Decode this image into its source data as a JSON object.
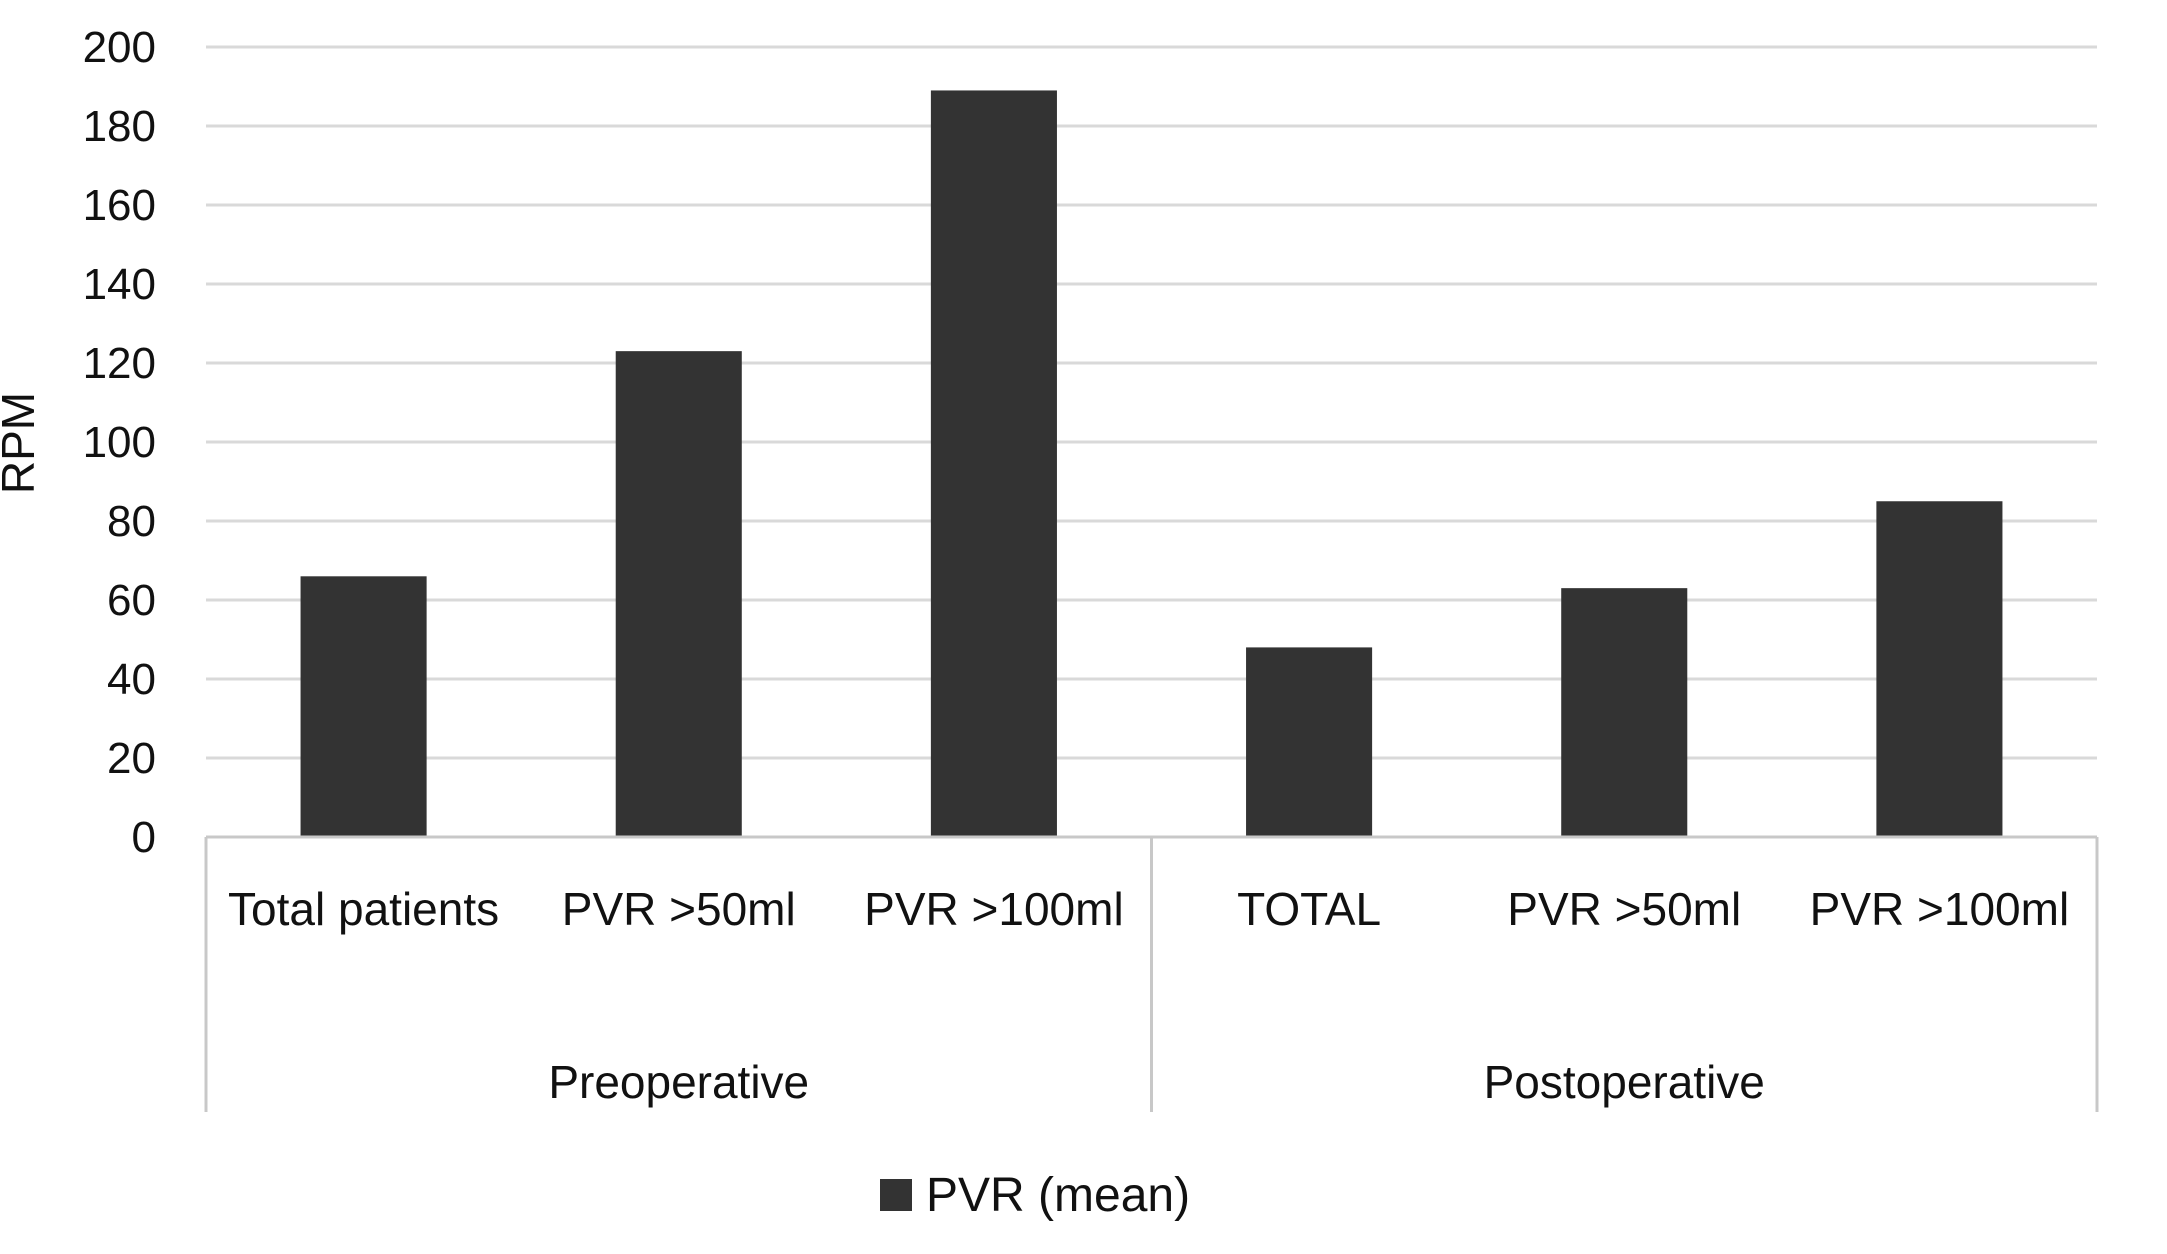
{
  "chart_data": {
    "type": "bar",
    "title": "",
    "ylabel": "RPM",
    "xlabel": "",
    "ylim": [
      0,
      200
    ],
    "yticks": [
      0,
      20,
      40,
      60,
      80,
      100,
      120,
      140,
      160,
      180,
      200
    ],
    "grid": true,
    "legend_position": "bottom",
    "bar_color": "#333333",
    "grid_color": "#d9d9d9",
    "groups": [
      {
        "label": "Preoperative",
        "categories": [
          "Total patients",
          "PVR >50ml",
          "PVR >100ml"
        ]
      },
      {
        "label": "Postoperative",
        "categories": [
          "TOTAL",
          "PVR >50ml",
          "PVR >100ml"
        ]
      }
    ],
    "series": [
      {
        "name": "PVR (mean)",
        "values": [
          66,
          123,
          189,
          48,
          63,
          85
        ]
      }
    ]
  }
}
